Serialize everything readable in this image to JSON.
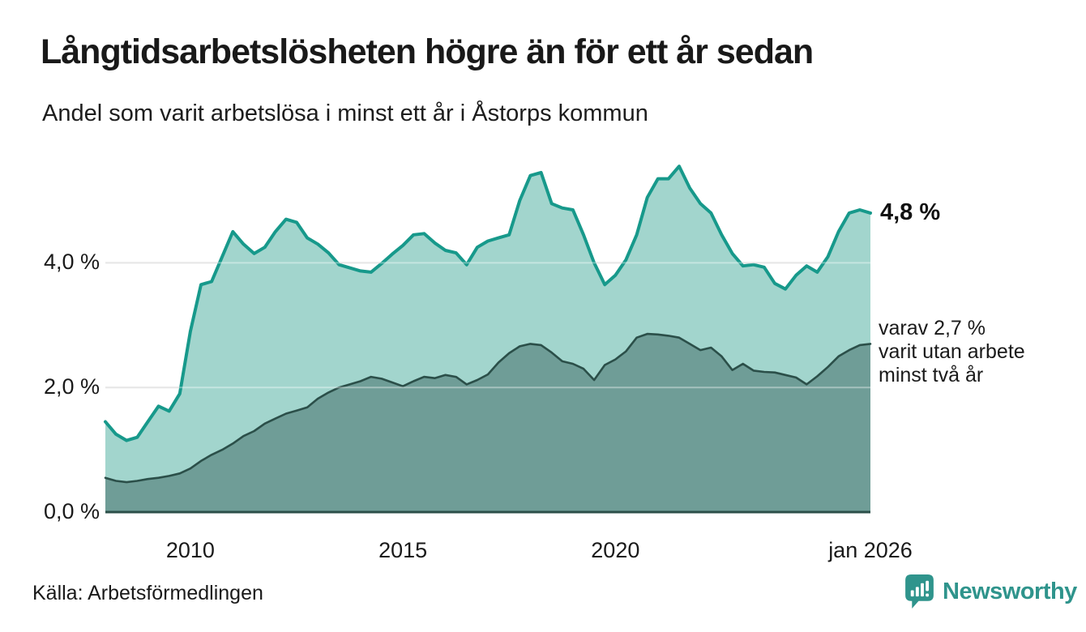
{
  "chart_data": {
    "type": "area",
    "title": "Långtidsarbetslösheten högre än för ett år sedan",
    "subtitle": "Andel som varit arbetslösa i minst ett år i Åstorps kommun",
    "source": "Källa: Arbetsförmedlingen",
    "unit": "%",
    "grid": true,
    "ylim": [
      0,
      5.8
    ],
    "x_start": 2008,
    "x_step_years": 0.25,
    "x_ticks": [
      {
        "value": 2010,
        "label": "2010"
      },
      {
        "value": 2015,
        "label": "2015"
      },
      {
        "value": 2020,
        "label": "2020"
      },
      {
        "value": 2026,
        "label": "jan 2026"
      }
    ],
    "y_ticks": [
      {
        "value": 0,
        "label": "0,0 %"
      },
      {
        "value": 2,
        "label": "2,0 %"
      },
      {
        "value": 4,
        "label": "4,0 %"
      }
    ],
    "series": [
      {
        "name": "Andel som varit arbetslösa i minst ett år",
        "line_color": "#17998b",
        "fill_color": "#a2d5cd",
        "latest_value": 4.8,
        "latest_label": "4,8 %",
        "values": [
          1.45,
          1.25,
          1.15,
          1.2,
          1.45,
          1.7,
          1.62,
          1.9,
          2.9,
          3.65,
          3.7,
          4.1,
          4.5,
          4.3,
          4.15,
          4.25,
          4.5,
          4.7,
          4.65,
          4.4,
          4.3,
          4.16,
          3.97,
          3.92,
          3.87,
          3.85,
          3.99,
          4.14,
          4.28,
          4.45,
          4.47,
          4.32,
          4.2,
          4.16,
          3.97,
          4.25,
          4.35,
          4.4,
          4.45,
          5.0,
          5.4,
          5.45,
          4.95,
          4.88,
          4.85,
          4.45,
          4.0,
          3.65,
          3.8,
          4.05,
          4.45,
          5.05,
          5.35,
          5.35,
          5.55,
          5.2,
          4.95,
          4.8,
          4.45,
          4.15,
          3.95,
          3.97,
          3.93,
          3.67,
          3.58,
          3.8,
          3.95,
          3.85,
          4.1,
          4.5,
          4.8,
          4.85,
          4.8
        ]
      },
      {
        "name": "Varav utan arbete minst två år",
        "line_color": "#2b4f49",
        "fill_color": "#6f9d97",
        "latest_value": 2.7,
        "annotation_lines": [
          "varav 2,7 %",
          "varit utan arbete",
          "minst två år"
        ],
        "values": [
          0.55,
          0.5,
          0.48,
          0.5,
          0.53,
          0.55,
          0.58,
          0.62,
          0.7,
          0.82,
          0.92,
          1.0,
          1.1,
          1.22,
          1.3,
          1.42,
          1.5,
          1.58,
          1.63,
          1.68,
          1.82,
          1.92,
          2.0,
          2.05,
          2.1,
          2.17,
          2.14,
          2.08,
          2.02,
          2.1,
          2.17,
          2.15,
          2.2,
          2.17,
          2.05,
          2.12,
          2.21,
          2.4,
          2.55,
          2.66,
          2.7,
          2.68,
          2.56,
          2.42,
          2.38,
          2.3,
          2.12,
          2.36,
          2.45,
          2.58,
          2.8,
          2.86,
          2.85,
          2.83,
          2.8,
          2.7,
          2.6,
          2.64,
          2.5,
          2.28,
          2.38,
          2.27,
          2.25,
          2.24,
          2.2,
          2.16,
          2.05,
          2.18,
          2.33,
          2.5,
          2.6,
          2.68,
          2.7
        ]
      }
    ]
  },
  "branding": {
    "name": "Newsworthy",
    "color": "#2f948c",
    "icon": "newsworthy-bubble-chart-icon"
  }
}
